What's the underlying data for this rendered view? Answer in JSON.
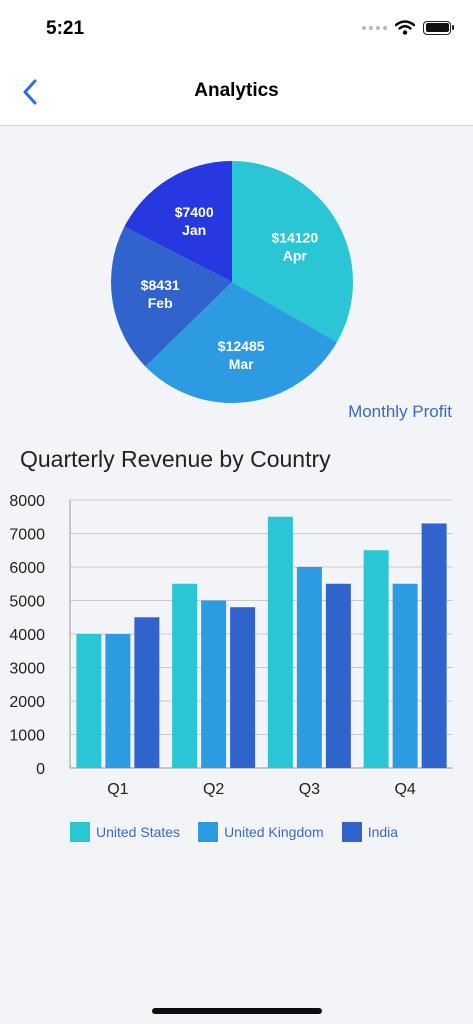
{
  "status_bar": {
    "time": "5:21"
  },
  "nav": {
    "title": "Analytics"
  },
  "pie_caption": "Monthly Profit",
  "bar_title": "Quarterly Revenue by Country",
  "chart_data": [
    {
      "type": "pie",
      "title": "Monthly Profit",
      "slices": [
        {
          "label": "Apr",
          "value_label": "$14120",
          "value": 14120,
          "color": "#2ac6d6"
        },
        {
          "label": "Mar",
          "value_label": "$12485",
          "value": 12485,
          "color": "#2d9be2"
        },
        {
          "label": "Feb",
          "value_label": "$8431",
          "value": 8431,
          "color": "#3163cc"
        },
        {
          "label": "Jan",
          "value_label": "$7400",
          "value": 7400,
          "color": "#2639e0"
        }
      ]
    },
    {
      "type": "bar",
      "title": "Quarterly Revenue by Country",
      "categories": [
        "Q1",
        "Q2",
        "Q3",
        "Q4"
      ],
      "series": [
        {
          "name": "United States",
          "values": [
            4000,
            5500,
            7500,
            6500
          ],
          "color": "#2ac6d6"
        },
        {
          "name": "United Kingdom",
          "values": [
            4000,
            5000,
            6000,
            5500
          ],
          "color": "#2d9be2"
        },
        {
          "name": "India",
          "values": [
            4500,
            4800,
            5500,
            7300
          ],
          "color": "#3163cc"
        }
      ],
      "ylim": [
        0,
        8000
      ],
      "yticks": [
        0,
        1000,
        2000,
        3000,
        4000,
        5000,
        6000,
        7000,
        8000
      ],
      "grid": true,
      "legend": "bottom"
    }
  ]
}
